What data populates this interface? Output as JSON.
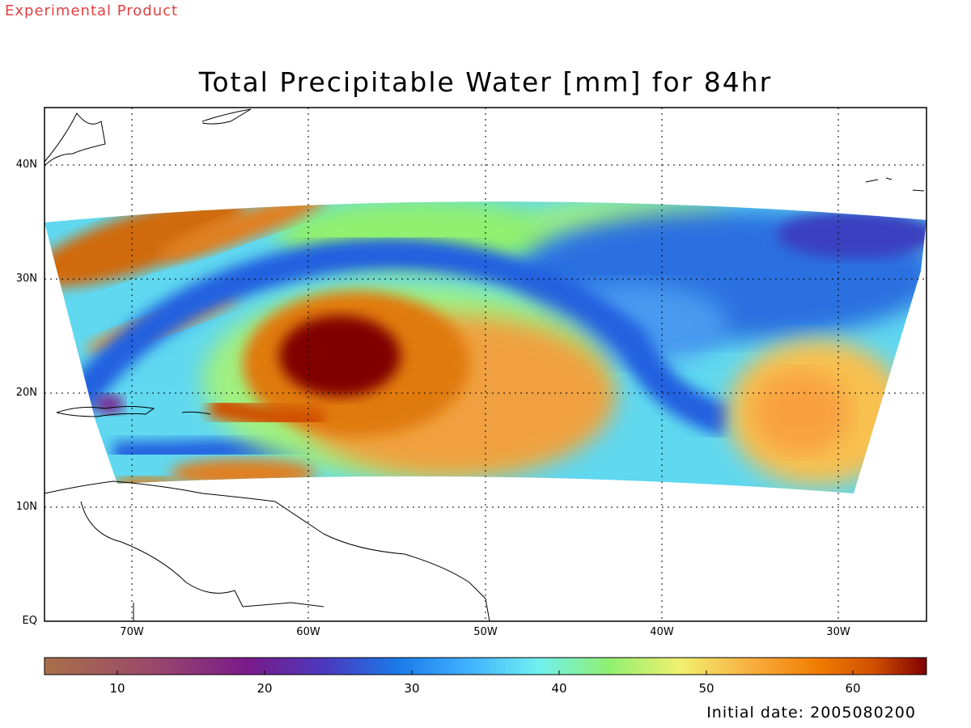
{
  "header": {
    "tag": "Experimental Product"
  },
  "title": "Total Precipitable Water [mm] for 84hr",
  "map": {
    "latitude_labels": [
      "40N",
      "30N",
      "20N",
      "10N",
      "EQ"
    ],
    "longitude_labels": [
      "70W",
      "60W",
      "50W",
      "40W",
      "30W"
    ],
    "lat_range": [
      0,
      45
    ],
    "lon_range": [
      -75,
      -25
    ],
    "grid": "dotted"
  },
  "colorbar": {
    "ticks": [
      "10",
      "20",
      "30",
      "40",
      "50",
      "60"
    ],
    "range": [
      5,
      65
    ],
    "colors": [
      "#a8704a",
      "#9a4a6a",
      "#7a1a8a",
      "#4a3ac0",
      "#1a7ae8",
      "#40b0ff",
      "#70f0f0",
      "#90f070",
      "#f0f070",
      "#f8b040",
      "#f07a00",
      "#d05000",
      "#800000"
    ]
  },
  "footer": {
    "initial_date": "Initial date: 2005080200"
  }
}
